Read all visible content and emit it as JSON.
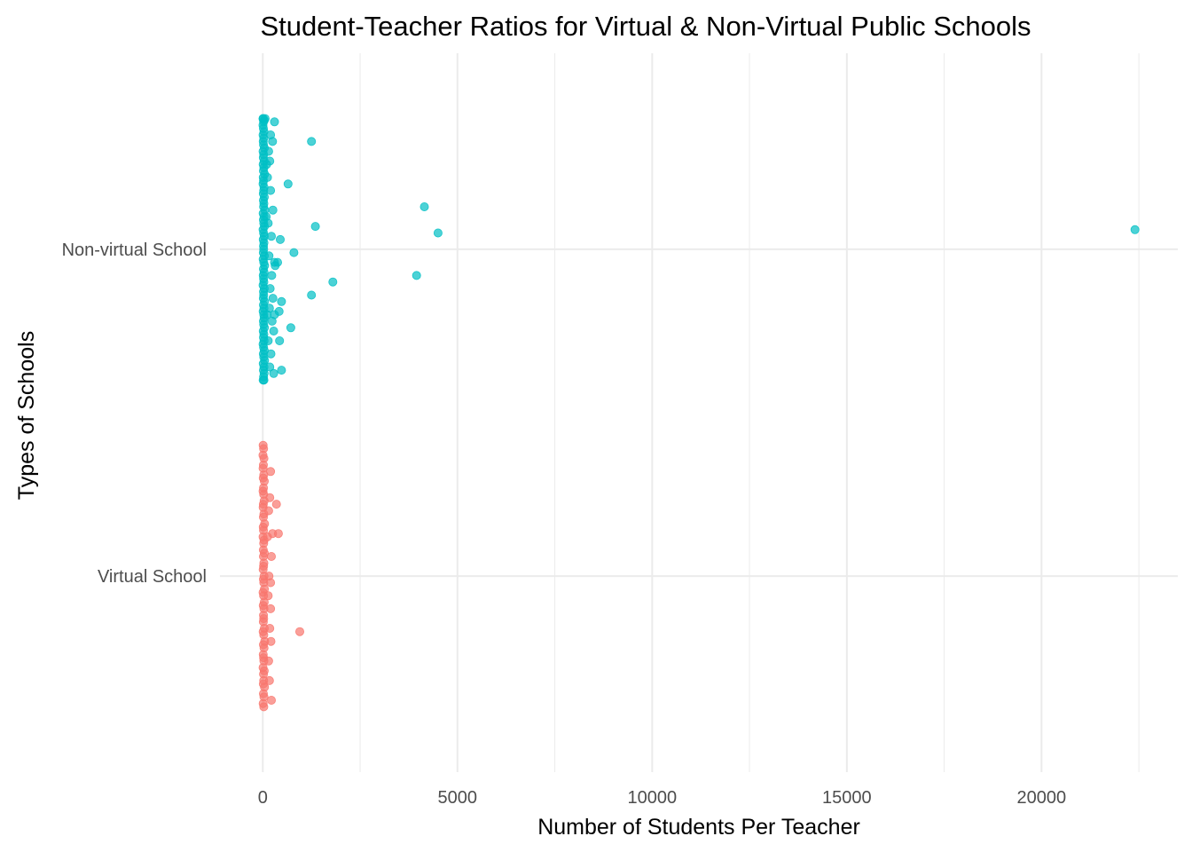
{
  "chart_data": {
    "type": "scatter",
    "title": "Student-Teacher Ratios for Virtual & Non-Virtual Public Schools",
    "xlabel": "Number of Students Per Teacher",
    "ylabel": "Types of Schools",
    "xlim": [
      -1100,
      23500
    ],
    "x_ticks": [
      0,
      5000,
      10000,
      15000,
      20000
    ],
    "x_tick_labels": [
      "0",
      "5000",
      "10000",
      "15000",
      "20000"
    ],
    "categories": [
      "Virtual School",
      "Non-virtual School"
    ],
    "grid": true,
    "legend": "none",
    "jitter_height": 0.4,
    "series": [
      {
        "category": "Non-virtual School",
        "color": "#00BFC4",
        "points": [
          [
            10,
            0.4
          ],
          [
            20,
            0.39
          ],
          [
            5,
            0.38
          ],
          [
            15,
            0.37
          ],
          [
            30,
            0.36
          ],
          [
            8,
            0.35
          ],
          [
            25,
            0.34
          ],
          [
            12,
            0.33
          ],
          [
            18,
            0.32
          ],
          [
            40,
            0.31
          ],
          [
            6,
            0.3
          ],
          [
            22,
            0.29
          ],
          [
            14,
            0.28
          ],
          [
            35,
            0.27
          ],
          [
            9,
            0.26
          ],
          [
            28,
            0.25
          ],
          [
            16,
            0.24
          ],
          [
            45,
            0.23
          ],
          [
            11,
            0.22
          ],
          [
            19,
            0.21
          ],
          [
            7,
            0.2
          ],
          [
            33,
            0.19
          ],
          [
            24,
            0.18
          ],
          [
            13,
            0.17
          ],
          [
            38,
            0.16
          ],
          [
            17,
            0.15
          ],
          [
            27,
            0.14
          ],
          [
            21,
            0.13
          ],
          [
            50,
            0.12
          ],
          [
            10,
            0.11
          ],
          [
            31,
            0.1
          ],
          [
            15,
            0.09
          ],
          [
            26,
            0.08
          ],
          [
            42,
            0.07
          ],
          [
            8,
            0.06
          ],
          [
            20,
            0.05
          ],
          [
            36,
            0.04
          ],
          [
            12,
            0.03
          ],
          [
            29,
            0.02
          ],
          [
            18,
            0.01
          ],
          [
            23,
            0.0
          ],
          [
            14,
            -0.01
          ],
          [
            39,
            -0.02
          ],
          [
            9,
            -0.03
          ],
          [
            25,
            -0.04
          ],
          [
            47,
            -0.05
          ],
          [
            16,
            -0.06
          ],
          [
            32,
            -0.07
          ],
          [
            11,
            -0.08
          ],
          [
            21,
            -0.09
          ],
          [
            28,
            -0.1
          ],
          [
            7,
            -0.11
          ],
          [
            37,
            -0.12
          ],
          [
            19,
            -0.13
          ],
          [
            24,
            -0.14
          ],
          [
            13,
            -0.15
          ],
          [
            44,
            -0.16
          ],
          [
            17,
            -0.17
          ],
          [
            30,
            -0.18
          ],
          [
            10,
            -0.19
          ],
          [
            26,
            -0.2
          ],
          [
            35,
            -0.21
          ],
          [
            15,
            -0.22
          ],
          [
            22,
            -0.23
          ],
          [
            41,
            -0.24
          ],
          [
            12,
            -0.25
          ],
          [
            27,
            -0.26
          ],
          [
            18,
            -0.27
          ],
          [
            33,
            -0.28
          ],
          [
            8,
            -0.29
          ],
          [
            20,
            -0.3
          ],
          [
            38,
            -0.31
          ],
          [
            14,
            -0.32
          ],
          [
            25,
            -0.33
          ],
          [
            46,
            -0.34
          ],
          [
            11,
            -0.35
          ],
          [
            29,
            -0.36
          ],
          [
            16,
            -0.37
          ],
          [
            34,
            -0.38
          ],
          [
            21,
            -0.39
          ],
          [
            10,
            -0.4
          ],
          [
            30,
            -0.4
          ],
          [
            5,
            0.4
          ],
          [
            40,
            0.395
          ],
          [
            60,
            0.4
          ],
          [
            300,
            0.39
          ],
          [
            200,
            0.35
          ],
          [
            250,
            0.33
          ],
          [
            150,
            0.3
          ],
          [
            180,
            0.27
          ],
          [
            120,
            0.22
          ],
          [
            200,
            0.18
          ],
          [
            260,
            0.12
          ],
          [
            140,
            0.08
          ],
          [
            220,
            0.04
          ],
          [
            160,
            -0.02
          ],
          [
            300,
            -0.04
          ],
          [
            230,
            -0.08
          ],
          [
            190,
            -0.12
          ],
          [
            260,
            -0.15
          ],
          [
            170,
            -0.18
          ],
          [
            240,
            -0.22
          ],
          [
            280,
            -0.25
          ],
          [
            140,
            -0.28
          ],
          [
            210,
            -0.32
          ],
          [
            180,
            -0.36
          ],
          [
            280,
            -0.38
          ],
          [
            100,
            0.26
          ],
          [
            110,
            -0.2
          ],
          [
            90,
            0.1
          ],
          [
            1250,
            0.33
          ],
          [
            650,
            0.2
          ],
          [
            4150,
            0.13
          ],
          [
            1350,
            0.07
          ],
          [
            4500,
            0.05
          ],
          [
            22400,
            0.06
          ],
          [
            450,
            0.03
          ],
          [
            800,
            -0.01
          ],
          [
            380,
            -0.04
          ],
          [
            320,
            -0.05
          ],
          [
            3950,
            -0.08
          ],
          [
            1800,
            -0.1
          ],
          [
            1250,
            -0.14
          ],
          [
            480,
            -0.16
          ],
          [
            420,
            -0.19
          ],
          [
            300,
            -0.2
          ],
          [
            720,
            -0.24
          ],
          [
            430,
            -0.28
          ],
          [
            480,
            -0.37
          ]
        ]
      },
      {
        "category": "Virtual School",
        "color": "#F8766D",
        "points": [
          [
            10,
            0.4
          ],
          [
            20,
            0.39
          ],
          [
            5,
            0.37
          ],
          [
            30,
            0.36
          ],
          [
            15,
            0.34
          ],
          [
            8,
            0.33
          ],
          [
            25,
            0.31
          ],
          [
            12,
            0.3
          ],
          [
            40,
            0.29
          ],
          [
            18,
            0.27
          ],
          [
            6,
            0.26
          ],
          [
            22,
            0.25
          ],
          [
            35,
            0.23
          ],
          [
            14,
            0.22
          ],
          [
            9,
            0.21
          ],
          [
            28,
            0.19
          ],
          [
            16,
            0.18
          ],
          [
            45,
            0.16
          ],
          [
            11,
            0.15
          ],
          [
            19,
            0.14
          ],
          [
            7,
            0.12
          ],
          [
            33,
            0.11
          ],
          [
            24,
            0.1
          ],
          [
            13,
            0.08
          ],
          [
            38,
            0.07
          ],
          [
            17,
            0.06
          ],
          [
            27,
            0.04
          ],
          [
            21,
            0.03
          ],
          [
            10,
            0.02
          ],
          [
            31,
            0.0
          ],
          [
            15,
            -0.01
          ],
          [
            26,
            -0.02
          ],
          [
            42,
            -0.04
          ],
          [
            8,
            -0.05
          ],
          [
            20,
            -0.06
          ],
          [
            36,
            -0.08
          ],
          [
            12,
            -0.09
          ],
          [
            29,
            -0.1
          ],
          [
            18,
            -0.12
          ],
          [
            23,
            -0.13
          ],
          [
            14,
            -0.14
          ],
          [
            39,
            -0.16
          ],
          [
            9,
            -0.17
          ],
          [
            25,
            -0.18
          ],
          [
            47,
            -0.2
          ],
          [
            16,
            -0.21
          ],
          [
            32,
            -0.22
          ],
          [
            11,
            -0.24
          ],
          [
            21,
            -0.25
          ],
          [
            28,
            -0.26
          ],
          [
            7,
            -0.28
          ],
          [
            37,
            -0.29
          ],
          [
            19,
            -0.3
          ],
          [
            24,
            -0.32
          ],
          [
            13,
            -0.33
          ],
          [
            44,
            -0.34
          ],
          [
            17,
            -0.36
          ],
          [
            30,
            -0.37
          ],
          [
            10,
            -0.39
          ],
          [
            26,
            -0.4
          ],
          [
            200,
            0.32
          ],
          [
            180,
            0.24
          ],
          [
            150,
            0.2
          ],
          [
            120,
            0.12
          ],
          [
            220,
            0.06
          ],
          [
            160,
            0.0
          ],
          [
            140,
            -0.06
          ],
          [
            200,
            -0.1
          ],
          [
            180,
            -0.16
          ],
          [
            210,
            -0.2
          ],
          [
            150,
            -0.26
          ],
          [
            170,
            -0.32
          ],
          [
            220,
            -0.38
          ],
          [
            350,
            0.22
          ],
          [
            250,
            0.13
          ],
          [
            400,
            0.13
          ],
          [
            200,
            -0.02
          ],
          [
            950,
            -0.17
          ]
        ]
      }
    ]
  }
}
